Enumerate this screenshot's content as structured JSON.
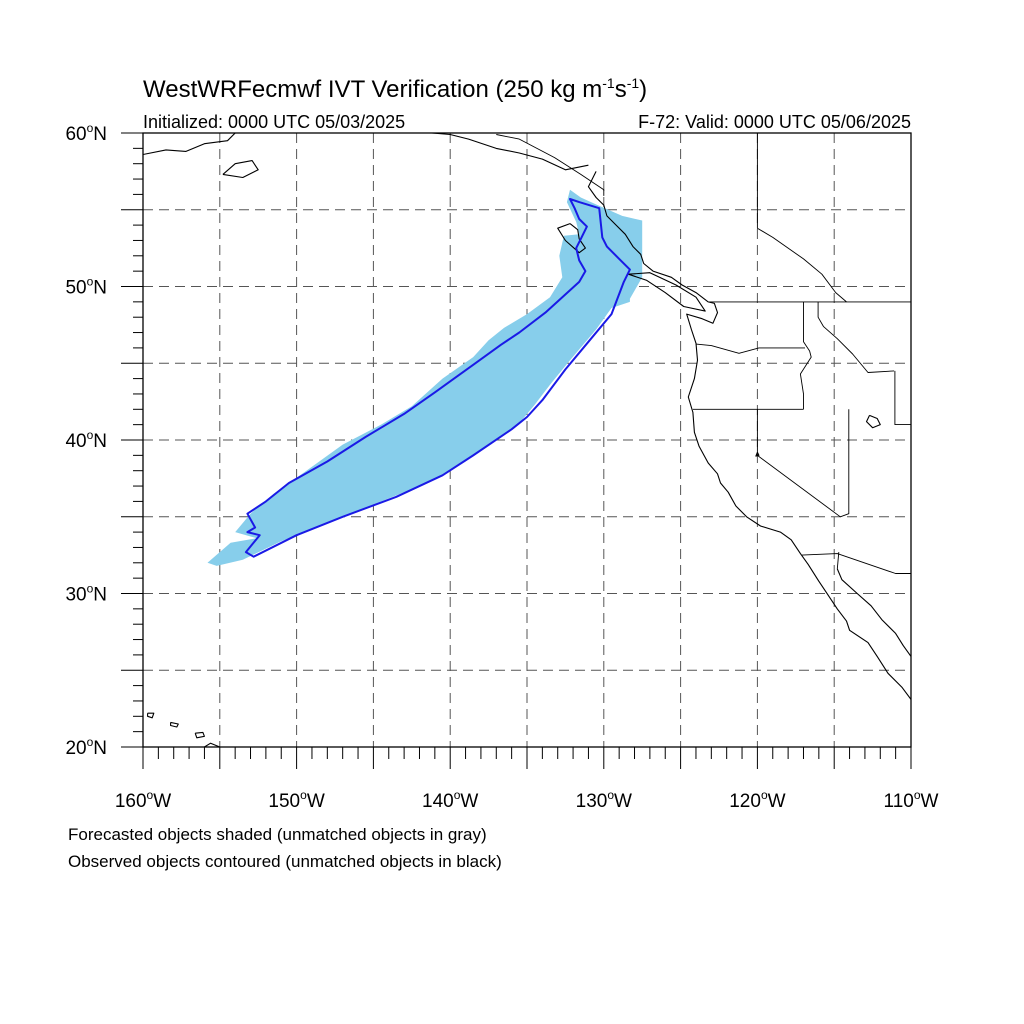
{
  "figure": {
    "title_main": "WestWRFecmwf IVT Verification (250 kg m",
    "title_sup1": "-1",
    "title_mid": "s",
    "title_sup2": "-1",
    "title_end": ")",
    "initialized": "Initialized: 0000 UTC 05/03/2025",
    "valid": "F-72: Valid: 0000 UTC 05/06/2025"
  },
  "axes": {
    "lon_range": [
      -160,
      -110
    ],
    "lat_range": [
      20,
      60
    ],
    "lat_labels": [
      "20",
      "30",
      "40",
      "50",
      "60"
    ],
    "lon_labels": [
      "160",
      "150",
      "140",
      "130",
      "120",
      "110"
    ],
    "lat_suffix": "N",
    "lon_suffix": "W",
    "degree_symbol": "o",
    "gridlines": "dashed, every 5 degrees"
  },
  "caption": {
    "line1": "Forecasted objects shaded (unmatched objects in gray)",
    "line2": "Observed objects contoured (unmatched objects in black)"
  },
  "colors": {
    "forecast_fill": "#87ceeb",
    "observed_contour": "#1a1ae6",
    "coastline": "#000000",
    "grid": "#555555"
  },
  "objects": {
    "forecast_shaded": {
      "matched": true,
      "outline_lonlat": [
        [
          -155.2,
          31.8
        ],
        [
          -153.5,
          32.2
        ],
        [
          -151.0,
          33.4
        ],
        [
          -148.0,
          34.6
        ],
        [
          -145.0,
          35.8
        ],
        [
          -141.5,
          37.2
        ],
        [
          -139.0,
          38.6
        ],
        [
          -137.5,
          39.7
        ],
        [
          -136.5,
          40.3
        ],
        [
          -135.5,
          41.1
        ],
        [
          -134.5,
          42.3
        ],
        [
          -133.5,
          43.6
        ],
        [
          -132.2,
          45.2
        ],
        [
          -130.5,
          47.2
        ],
        [
          -129.5,
          48.6
        ],
        [
          -128.3,
          49.0
        ],
        [
          -128.3,
          49.2
        ],
        [
          -127.5,
          50.6
        ],
        [
          -127.5,
          54.3
        ],
        [
          -128.8,
          54.6
        ],
        [
          -130.4,
          55.3
        ],
        [
          -131.5,
          55.8
        ],
        [
          -132.2,
          56.3
        ],
        [
          -132.4,
          55.5
        ],
        [
          -131.8,
          54.2
        ],
        [
          -131.6,
          53.4
        ],
        [
          -132.6,
          53.3
        ],
        [
          -132.9,
          52.0
        ],
        [
          -132.7,
          50.6
        ],
        [
          -133.5,
          49.3
        ],
        [
          -135.0,
          48.2
        ],
        [
          -136.5,
          47.3
        ],
        [
          -137.5,
          46.5
        ],
        [
          -138.5,
          45.4
        ],
        [
          -140.5,
          44.0
        ],
        [
          -142.5,
          42.2
        ],
        [
          -144.5,
          41.0
        ],
        [
          -147.0,
          39.7
        ],
        [
          -149.5,
          37.9
        ],
        [
          -151.5,
          36.5
        ],
        [
          -153.0,
          35.2
        ],
        [
          -154.0,
          34.0
        ],
        [
          -152.6,
          33.6
        ],
        [
          -154.3,
          33.3
        ],
        [
          -155.8,
          32.0
        ]
      ]
    },
    "observed_contour": {
      "matched": true,
      "outline_lonlat": [
        [
          -152.8,
          32.4
        ],
        [
          -150.0,
          33.8
        ],
        [
          -147.0,
          35.0
        ],
        [
          -143.5,
          36.3
        ],
        [
          -140.5,
          37.7
        ],
        [
          -138.5,
          39.0
        ],
        [
          -136.0,
          40.7
        ],
        [
          -135.0,
          41.5
        ],
        [
          -134.0,
          42.6
        ],
        [
          -132.5,
          44.6
        ],
        [
          -131.0,
          46.4
        ],
        [
          -129.5,
          48.2
        ],
        [
          -128.7,
          50.3
        ],
        [
          -128.3,
          51.1
        ],
        [
          -129.0,
          51.8
        ],
        [
          -129.8,
          52.6
        ],
        [
          -130.1,
          53.2
        ],
        [
          -130.3,
          55.1
        ],
        [
          -131.6,
          55.5
        ],
        [
          -132.2,
          55.7
        ],
        [
          -131.9,
          55.1
        ],
        [
          -131.6,
          54.4
        ],
        [
          -131.1,
          53.9
        ],
        [
          -131.5,
          53.1
        ],
        [
          -131.8,
          52.5
        ],
        [
          -131.6,
          51.7
        ],
        [
          -131.2,
          51.0
        ],
        [
          -131.6,
          50.3
        ],
        [
          -133.8,
          48.3
        ],
        [
          -135.5,
          47.0
        ],
        [
          -136.7,
          46.2
        ],
        [
          -138.5,
          44.9
        ],
        [
          -141.0,
          43.1
        ],
        [
          -143.0,
          41.7
        ],
        [
          -145.5,
          40.2
        ],
        [
          -148.0,
          38.6
        ],
        [
          -150.5,
          37.2
        ],
        [
          -152.0,
          36.0
        ],
        [
          -153.2,
          35.2
        ],
        [
          -152.7,
          34.3
        ],
        [
          -153.2,
          34.0
        ],
        [
          -152.4,
          33.8
        ],
        [
          -153.3,
          32.7
        ]
      ]
    }
  },
  "map_lines": {
    "coast_north_america": [
      [
        -130.5,
        57.5
      ],
      [
        -131.0,
        56.5
      ],
      [
        -130.5,
        55.8
      ],
      [
        -130.0,
        55.3
      ],
      [
        -129.8,
        54.6
      ],
      [
        -129.2,
        54.0
      ],
      [
        -128.6,
        53.4
      ],
      [
        -128.1,
        52.6
      ],
      [
        -127.6,
        52.1
      ],
      [
        -127.4,
        51.5
      ],
      [
        -126.8,
        51.0
      ],
      [
        -125.6,
        50.6
      ],
      [
        -124.9,
        50.1
      ],
      [
        -124.0,
        49.6
      ],
      [
        -123.2,
        49.0
      ],
      [
        -122.8,
        48.9
      ],
      [
        -122.6,
        48.3
      ],
      [
        -122.9,
        47.6
      ],
      [
        -123.6,
        47.9
      ],
      [
        -124.6,
        48.2
      ],
      [
        -124.3,
        47.2
      ],
      [
        -124.0,
        46.3
      ],
      [
        -123.9,
        45.2
      ],
      [
        -124.1,
        44.0
      ],
      [
        -124.5,
        42.8
      ],
      [
        -124.2,
        41.8
      ],
      [
        -124.1,
        40.5
      ],
      [
        -123.8,
        39.6
      ],
      [
        -123.2,
        38.5
      ],
      [
        -122.6,
        37.8
      ],
      [
        -122.4,
        37.2
      ],
      [
        -121.9,
        36.6
      ],
      [
        -121.4,
        35.7
      ],
      [
        -120.7,
        35.0
      ],
      [
        -119.8,
        34.4
      ],
      [
        -118.5,
        34.0
      ],
      [
        -117.8,
        33.5
      ],
      [
        -117.2,
        32.6
      ],
      [
        -116.7,
        31.9
      ],
      [
        -116.0,
        30.8
      ],
      [
        -115.6,
        30.2
      ],
      [
        -114.8,
        29.0
      ],
      [
        -114.2,
        28.2
      ],
      [
        -114.0,
        27.6
      ],
      [
        -112.8,
        26.8
      ],
      [
        -112.2,
        25.9
      ],
      [
        -111.5,
        24.8
      ],
      [
        -110.6,
        23.9
      ],
      [
        -110.0,
        23.1
      ]
    ],
    "coast_alaska_panhandle": [
      [
        -131.0,
        57.9
      ],
      [
        -132.5,
        57.6
      ],
      [
        -134.0,
        58.3
      ],
      [
        -135.5,
        58.7
      ],
      [
        -137.0,
        59.0
      ],
      [
        -138.8,
        59.6
      ],
      [
        -140.0,
        59.9
      ],
      [
        -141.2,
        60.0
      ]
    ],
    "gulf_of_california_east": [
      [
        -114.8,
        31.6
      ],
      [
        -114.5,
        30.9
      ],
      [
        -113.5,
        30.0
      ],
      [
        -112.6,
        29.2
      ],
      [
        -111.9,
        28.3
      ],
      [
        -111.0,
        27.4
      ],
      [
        -110.5,
        26.6
      ],
      [
        -110.0,
        25.9
      ]
    ],
    "alaska_peninsula": [
      [
        -160.0,
        58.6
      ],
      [
        -158.5,
        58.9
      ],
      [
        -157.2,
        58.8
      ],
      [
        -156.0,
        59.3
      ],
      [
        -154.5,
        59.5
      ],
      [
        -154.0,
        60.0
      ]
    ],
    "kodiak_island": [
      [
        -154.8,
        57.3
      ],
      [
        -153.5,
        57.1
      ],
      [
        -152.5,
        57.6
      ],
      [
        -152.9,
        58.2
      ],
      [
        -154.0,
        58.0
      ],
      [
        -154.8,
        57.3
      ]
    ],
    "hawaii_big_island": [
      [
        -156.0,
        20.0
      ],
      [
        -155.6,
        20.25
      ],
      [
        -155.0,
        20.0
      ],
      [
        -155.2,
        19.6
      ]
    ],
    "hawaii_maui": [
      [
        -156.6,
        20.9
      ],
      [
        -156.1,
        20.95
      ],
      [
        -156.0,
        20.7
      ],
      [
        -156.5,
        20.6
      ],
      [
        -156.6,
        20.9
      ]
    ],
    "hawaii_oahu": [
      [
        -158.2,
        21.6
      ],
      [
        -157.7,
        21.5
      ],
      [
        -157.8,
        21.3
      ],
      [
        -158.2,
        21.4
      ],
      [
        -158.2,
        21.6
      ]
    ],
    "hawaii_kauai": [
      [
        -159.7,
        22.2
      ],
      [
        -159.3,
        22.2
      ],
      [
        -159.4,
        21.9
      ],
      [
        -159.7,
        22.0
      ],
      [
        -159.7,
        22.2
      ]
    ],
    "haida_gwaii": [
      [
        -132.2,
        54.1
      ],
      [
        -131.7,
        53.7
      ],
      [
        -131.6,
        53.1
      ],
      [
        -131.2,
        52.5
      ],
      [
        -131.6,
        52.2
      ],
      [
        -132.5,
        53.0
      ],
      [
        -133.0,
        53.8
      ],
      [
        -132.2,
        54.1
      ]
    ],
    "vancouver_island": [
      [
        -128.4,
        50.8
      ],
      [
        -127.2,
        50.4
      ],
      [
        -126.0,
        49.6
      ],
      [
        -124.8,
        48.7
      ],
      [
        -123.4,
        48.4
      ],
      [
        -124.0,
        49.3
      ],
      [
        -125.3,
        50.1
      ],
      [
        -127.0,
        50.9
      ],
      [
        -128.4,
        50.8
      ]
    ],
    "border_us_canada": [
      [
        -123.2,
        49.0
      ],
      [
        -110.0,
        49.0
      ]
    ],
    "border_alaska_bc": [
      [
        -130.0,
        55.9
      ],
      [
        -130.0,
        56.3
      ],
      [
        -131.5,
        57.3
      ],
      [
        -133.2,
        58.4
      ],
      [
        -135.5,
        59.6
      ],
      [
        -137.0,
        59.9
      ]
    ],
    "border_bc_alberta": [
      [
        -120.0,
        60.0
      ],
      [
        -120.0,
        53.8
      ],
      [
        -119.0,
        53.2
      ],
      [
        -117.0,
        51.8
      ],
      [
        -115.8,
        50.8
      ],
      [
        -114.9,
        49.6
      ],
      [
        -114.2,
        49.0
      ]
    ],
    "border_or_ca": [
      [
        -124.2,
        42.0
      ],
      [
        -117.0,
        42.0
      ]
    ],
    "border_or_wa": [
      [
        -124.0,
        46.25
      ],
      [
        -123.0,
        46.15
      ],
      [
        -121.2,
        45.65
      ],
      [
        -119.9,
        46.0
      ],
      [
        -116.9,
        46.0
      ]
    ],
    "border_idaho_west": [
      [
        -117.0,
        49.0
      ],
      [
        -117.0,
        46.4
      ],
      [
        -116.6,
        45.8
      ],
      [
        -116.5,
        45.4
      ],
      [
        -117.2,
        44.3
      ],
      [
        -117.0,
        43.0
      ],
      [
        -117.0,
        42.0
      ]
    ],
    "border_idaho_montana": [
      [
        -116.05,
        49.0
      ],
      [
        -116.05,
        48.0
      ],
      [
        -115.7,
        47.4
      ],
      [
        -114.8,
        46.6
      ],
      [
        -113.8,
        45.6
      ],
      [
        -112.8,
        44.4
      ],
      [
        -111.1,
        44.5
      ]
    ],
    "border_nevada_east": [
      [
        -114.05,
        42.0
      ],
      [
        -114.05,
        35.2
      ],
      [
        -114.6,
        35.0
      ]
    ],
    "border_ca_nevada": [
      [
        -120.0,
        42.0
      ],
      [
        -120.0,
        39.0
      ],
      [
        -114.6,
        35.0
      ]
    ],
    "border_utah_wy": [
      [
        -111.05,
        44.5
      ],
      [
        -111.05,
        41.0
      ],
      [
        -110.0,
        41.0
      ]
    ],
    "border_arizona_south": [
      [
        -117.1,
        32.5
      ],
      [
        -114.8,
        32.6
      ],
      [
        -111.0,
        31.3
      ],
      [
        -110.0,
        31.3
      ]
    ],
    "border_mexico_baja": [
      [
        -114.7,
        32.7
      ],
      [
        -114.8,
        31.6
      ]
    ],
    "great_salt_lake": [
      [
        -112.7,
        41.6
      ],
      [
        -112.2,
        41.4
      ],
      [
        -112.0,
        41.0
      ],
      [
        -112.5,
        40.8
      ],
      [
        -112.9,
        41.2
      ],
      [
        -112.7,
        41.6
      ]
    ],
    "lake_tahoe": [
      [
        -120.0,
        39.2
      ],
      [
        -119.9,
        39.0
      ],
      [
        -120.1,
        38.95
      ],
      [
        -120.0,
        39.2
      ]
    ]
  }
}
